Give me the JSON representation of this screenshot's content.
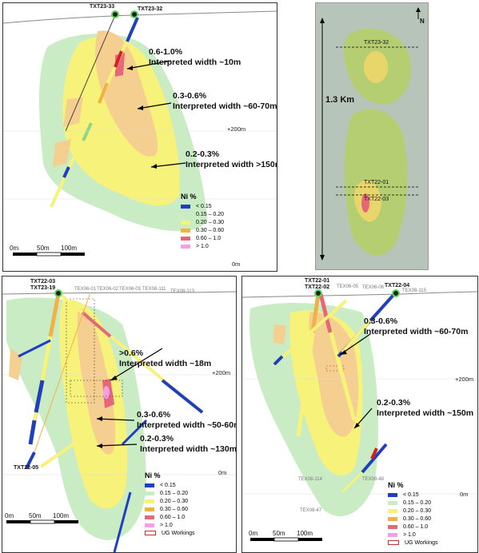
{
  "legend": {
    "title": "Ni %",
    "items": [
      {
        "label": "< 0.15",
        "color": "#1f3ec0"
      },
      {
        "label": "0.15 – 0.20",
        "color": "#c9ecc4"
      },
      {
        "label": "0.20 – 0.30",
        "color": "#f6f27a"
      },
      {
        "label": "0.30 – 0.60",
        "color": "#f0b247"
      },
      {
        "label": "0.60 – 1.0",
        "color": "#e5687a"
      },
      {
        "label": "> 1.0",
        "color": "#f0a0e6"
      }
    ],
    "ug_label": "UG Workings"
  },
  "panel_a": {
    "holes": [
      "TXT23-33",
      "TXT23-32"
    ],
    "annotations": [
      {
        "grade": "0.6-1.0%",
        "width": "Interpreted width ~10m"
      },
      {
        "grade": "0.3-0.6%",
        "width": "Interpreted width ~60-70m"
      },
      {
        "grade": "0.2-0.3%",
        "width": "Interpreted width >150m"
      }
    ],
    "elev_200": "+200m",
    "elev_0": "0m",
    "scale": [
      "0m",
      "50m",
      "100m"
    ]
  },
  "panel_map": {
    "north": "N",
    "length": "1.3 Km",
    "sections": [
      "TXT23-32",
      "TXT22-01",
      "TXT22-03"
    ]
  },
  "panel_c": {
    "holes": [
      "TXT22-03",
      "TXT23-19",
      "TXT22-05"
    ],
    "old_holes": [
      "TEX06-01",
      "TEX06-02",
      "TEX06-03",
      "TEX08-111",
      "TEX08-113"
    ],
    "annotations": [
      {
        "grade": ">0.6%",
        "width": "Interpreted width ~18m"
      },
      {
        "grade": "0.3-0.6%",
        "width": "Interpreted width ~50-60m"
      },
      {
        "grade": "0.2-0.3%",
        "width": "Interpreted width ~130m"
      }
    ],
    "elev_200": "+200m",
    "elev_0": "0m",
    "scale": [
      "0m",
      "50m",
      "100m"
    ]
  },
  "panel_d": {
    "holes": [
      "TXT22-01",
      "TXT22-02",
      "TXT22-04"
    ],
    "old_holes": [
      "TEX06-05",
      "TEX06-06",
      "TEX08-115",
      "TEX08-114",
      "TEX08-48",
      "TEX08-47"
    ],
    "annotations": [
      {
        "grade": "0.3-0.6%",
        "width": "Interpreted width ~60-70m"
      },
      {
        "grade": "0.2-0.3%",
        "width": "Interpreted width ~150m"
      }
    ],
    "elev_200": "+200m",
    "elev_0": "0m",
    "scale": [
      "0m",
      "50m",
      "100m"
    ]
  }
}
